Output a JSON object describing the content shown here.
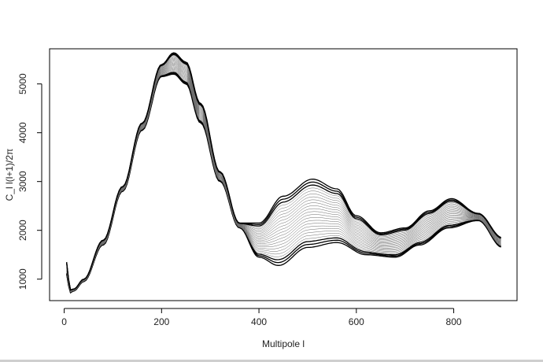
{
  "chart_data": {
    "type": "line",
    "title": "",
    "xlabel": "Multipole l",
    "ylabel": "C_l l(l+1)/2π",
    "xlim": [
      -30,
      930
    ],
    "ylim": [
      560,
      5720
    ],
    "xticks": [
      0,
      200,
      400,
      600,
      800
    ],
    "yticks": [
      1000,
      2000,
      3000,
      4000,
      5000
    ],
    "grid": false,
    "legend": "none",
    "line_color": "#000000",
    "band": {
      "description_count": 24,
      "upper": {
        "name": "",
        "x": [
          5,
          12,
          20,
          40,
          80,
          120,
          160,
          200,
          225,
          250,
          280,
          320,
          360,
          400,
          450,
          510,
          560,
          600,
          650,
          700,
          750,
          795,
          850,
          900
        ],
        "y": [
          1350,
          780,
          800,
          1000,
          1800,
          2900,
          4200,
          5400,
          5640,
          5450,
          4600,
          3200,
          2150,
          2150,
          2700,
          3050,
          2850,
          2300,
          1950,
          2050,
          2400,
          2650,
          2350,
          1850
        ]
      },
      "lower": {
        "name": "",
        "x": [
          5,
          12,
          20,
          40,
          80,
          120,
          160,
          200,
          225,
          250,
          280,
          320,
          360,
          400,
          440,
          500,
          560,
          620,
          680,
          730,
          790,
          850,
          900
        ],
        "y": [
          1100,
          720,
          760,
          950,
          1700,
          2800,
          4050,
          5150,
          5200,
          5000,
          4200,
          3000,
          2050,
          1450,
          1280,
          1650,
          1750,
          1500,
          1450,
          1700,
          2050,
          2200,
          1650
        ]
      }
    }
  }
}
